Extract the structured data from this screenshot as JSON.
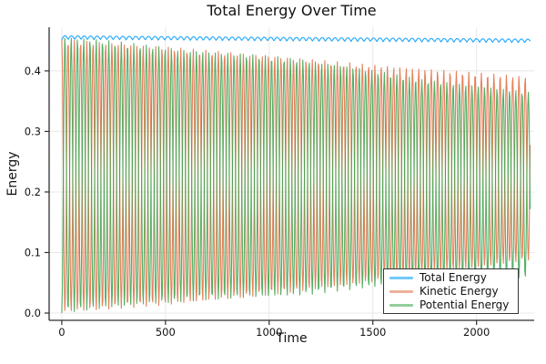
{
  "window": {
    "title": "Total Energy Over Time"
  },
  "chart_data": {
    "type": "line",
    "title": "Total Energy Over Time",
    "xlabel": "Time",
    "ylabel": "Energy",
    "xlim": [
      -61,
      2278
    ],
    "ylim": [
      -0.012,
      0.472
    ],
    "xticks": [
      0,
      500,
      1000,
      1500,
      2000
    ],
    "yticks": [
      0.0,
      0.1,
      0.2,
      0.3,
      0.4
    ],
    "grid": true,
    "legend_position": "bottom-right",
    "t_end": 2260,
    "sample_step": 2.87,
    "colors": {
      "axis": "#2E2E33",
      "grid": "#E8E8E8",
      "tick_text": "#111111",
      "background": "#FFFFFF"
    },
    "series": [
      {
        "name": "Total Energy",
        "color": "#009AF9",
        "model": "scallop",
        "upper_envelope": [
          [
            0,
            0.458
          ],
          [
            1000,
            0.4555
          ],
          [
            2260,
            0.4525
          ]
        ],
        "dip_amplitude": 0.006,
        "period": 31
      },
      {
        "name": "Kinetic Energy",
        "color": "#E26F46",
        "model": "oscillation",
        "upper_envelope": [
          [
            0,
            0.452
          ],
          [
            500,
            0.44
          ],
          [
            1000,
            0.425
          ],
          [
            1500,
            0.41
          ],
          [
            2000,
            0.397
          ],
          [
            2260,
            0.39
          ]
        ],
        "lower_envelope": [
          [
            0,
            0.001
          ],
          [
            500,
            0.013
          ],
          [
            1000,
            0.03
          ],
          [
            1500,
            0.051
          ],
          [
            2000,
            0.075
          ],
          [
            2260,
            0.088
          ]
        ],
        "period": 30.2,
        "phase": 0
      },
      {
        "name": "Potential Energy",
        "color": "#3DA44E",
        "model": "complement",
        "of": "Kinetic Energy",
        "total": "Total Energy"
      }
    ]
  }
}
